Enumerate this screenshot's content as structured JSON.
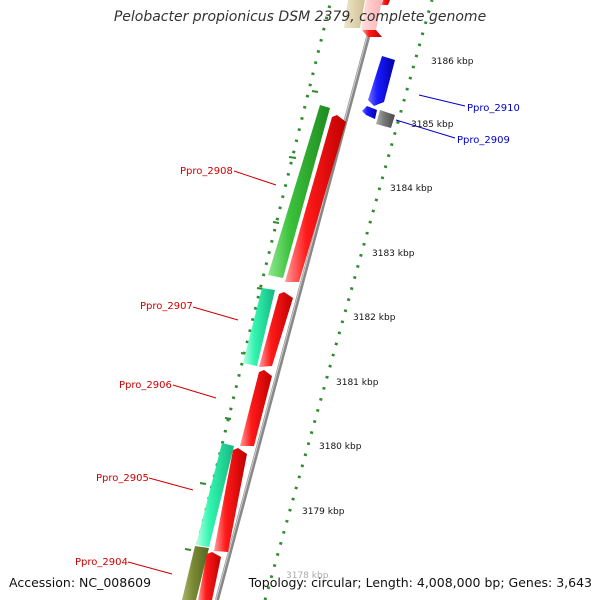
{
  "title": "Pelobacter propionicus DSM 2379, complete genome",
  "accession": "Accession: NC_008609",
  "topology": "Topology: circular; Length: 4,008,000 bp; Genes: 3,643",
  "colors": {
    "scale_green": "#2e8b2e",
    "backbone": "#888888",
    "reverse_label": "#cc0000",
    "forward_label": "#0000cc"
  },
  "scale_labels": [
    {
      "text": "3186 kbp",
      "kbp": 3186
    },
    {
      "text": "3185 kbp",
      "kbp": 3185
    },
    {
      "text": "3184 kbp",
      "kbp": 3184
    },
    {
      "text": "3183 kbp",
      "kbp": 3183
    },
    {
      "text": "3182 kbp",
      "kbp": 3182
    },
    {
      "text": "3181 kbp",
      "kbp": 3181
    },
    {
      "text": "3180 kbp",
      "kbp": 3180
    },
    {
      "text": "3179 kbp",
      "kbp": 3179
    },
    {
      "text": "3178 kbp",
      "kbp": 3178
    }
  ],
  "gene_labels": [
    {
      "text": "Ppro_2910",
      "strand": "forward"
    },
    {
      "text": "Ppro_2909",
      "strand": "forward"
    },
    {
      "text": "Ppro_2908",
      "strand": "reverse"
    },
    {
      "text": "Ppro_2907",
      "strand": "reverse"
    },
    {
      "text": "Ppro_2906",
      "strand": "reverse"
    },
    {
      "text": "Ppro_2905",
      "strand": "reverse"
    },
    {
      "text": "Ppro_2904",
      "strand": "reverse"
    }
  ]
}
